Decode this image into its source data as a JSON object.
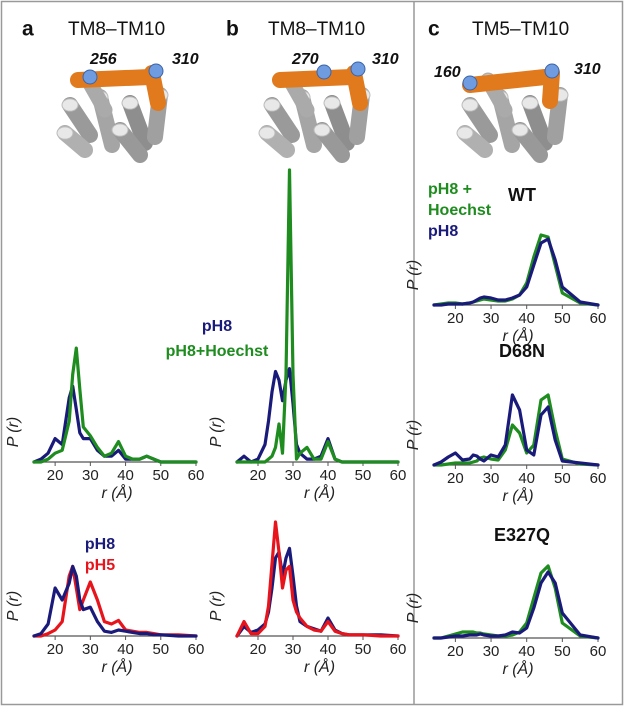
{
  "header": {
    "panels": [
      {
        "letter": "a",
        "title": "TM8–TM10",
        "residues": [
          "256",
          "310"
        ]
      },
      {
        "letter": "b",
        "title": "TM8–TM10",
        "residues": [
          "270",
          "310"
        ]
      },
      {
        "letter": "c",
        "title": "TM5–TM10",
        "residues": [
          "160",
          "310"
        ]
      }
    ]
  },
  "chart_data": [
    {
      "type": "line",
      "xlabel": "r (Å)",
      "ylabel": "P (r)",
      "x": [
        14,
        16,
        18,
        20,
        22,
        24,
        25,
        26,
        27,
        28,
        30,
        32,
        34,
        36,
        38,
        40,
        42,
        44,
        46,
        48,
        50,
        55,
        60
      ],
      "xlim": [
        14,
        60
      ],
      "xticks": [
        20,
        30,
        40,
        50,
        60
      ],
      "ylim": [
        0,
        100
      ],
      "series": [
        {
          "color": "#1a1a7a",
          "values": [
            0,
            1,
            3,
            8,
            6,
            22,
            26,
            18,
            10,
            8,
            8,
            4,
            2,
            2,
            4,
            1,
            1,
            1,
            2,
            1,
            0,
            0,
            0
          ]
        },
        {
          "color": "#1e8c1e",
          "values": [
            0,
            0,
            1,
            3,
            4,
            14,
            30,
            39,
            25,
            12,
            9,
            5,
            2,
            3,
            7,
            2,
            1,
            1,
            2,
            1,
            0,
            0,
            0
          ]
        }
      ]
    },
    {
      "type": "line",
      "xlabel": "r (Å)",
      "ylabel": "P (r)",
      "x": [
        14,
        16,
        18,
        20,
        22,
        24,
        25,
        26,
        27,
        28,
        30,
        32,
        34,
        36,
        38,
        40,
        42,
        44,
        46,
        48,
        50,
        55,
        60
      ],
      "xlim": [
        14,
        60
      ],
      "xticks": [
        20,
        30,
        40,
        50,
        60
      ],
      "ylim": [
        0,
        100
      ],
      "series": [
        {
          "color": "#e8141c",
          "values": [
            0,
            0,
            2,
            5,
            12,
            50,
            58,
            40,
            22,
            30,
            45,
            30,
            12,
            10,
            13,
            5,
            4,
            3,
            3,
            2,
            1,
            1,
            0
          ]
        },
        {
          "color": "#1a1a7a",
          "values": [
            0,
            2,
            10,
            40,
            30,
            44,
            58,
            50,
            30,
            22,
            24,
            12,
            4,
            3,
            5,
            4,
            3,
            2,
            2,
            1,
            1,
            0,
            0
          ]
        }
      ]
    },
    {
      "type": "line",
      "xlabel": "r (Å)",
      "ylabel": "P (r)",
      "legend": true,
      "x": [
        14,
        16,
        18,
        20,
        22,
        23,
        24,
        25,
        26,
        27,
        28,
        29,
        30,
        31,
        32,
        34,
        36,
        38,
        40,
        42,
        44,
        46,
        50,
        55,
        60
      ],
      "xlim": [
        14,
        60
      ],
      "xticks": [
        20,
        30,
        40,
        50,
        60
      ],
      "ylim": [
        0,
        100
      ],
      "series": [
        {
          "name": "pH8",
          "color": "#1a1a7a",
          "values": [
            0,
            2,
            0,
            1,
            6,
            14,
            24,
            31,
            28,
            21,
            28,
            32,
            20,
            6,
            3,
            1,
            1,
            2,
            8,
            1,
            0,
            0,
            0,
            0,
            0
          ]
        },
        {
          "name": "pH8+Hoechst",
          "color": "#1e8c1e",
          "values": [
            0,
            0,
            0,
            0,
            0,
            1,
            2,
            5,
            13,
            3,
            30,
            100,
            30,
            1,
            3,
            5,
            1,
            1,
            7,
            1,
            0,
            0,
            0,
            0,
            0
          ]
        }
      ]
    },
    {
      "type": "line",
      "xlabel": "r (Å)",
      "ylabel": "P (r)",
      "legend": true,
      "x": [
        14,
        16,
        18,
        20,
        22,
        23,
        24,
        25,
        26,
        27,
        28,
        29,
        30,
        31,
        32,
        34,
        36,
        38,
        40,
        42,
        44,
        46,
        50,
        55,
        60
      ],
      "xlim": [
        14,
        60
      ],
      "xticks": [
        20,
        30,
        40,
        50,
        60
      ],
      "ylim": [
        0,
        100
      ],
      "series": [
        {
          "name": "pH8",
          "color": "#1a1a7a",
          "values": [
            0,
            8,
            3,
            5,
            10,
            20,
            40,
            65,
            70,
            50,
            65,
            73,
            50,
            25,
            12,
            8,
            6,
            4,
            15,
            5,
            2,
            1,
            1,
            1,
            0
          ]
        },
        {
          "name": "pH5",
          "color": "#e8141c",
          "values": [
            0,
            12,
            2,
            2,
            8,
            25,
            60,
            95,
            70,
            40,
            55,
            58,
            30,
            20,
            15,
            8,
            5,
            4,
            12,
            4,
            2,
            1,
            1,
            0,
            0
          ]
        }
      ]
    },
    {
      "type": "line",
      "title": "WT",
      "xlabel": "r (Å)",
      "ylabel": "P (r)",
      "legend": true,
      "x": [
        14,
        16,
        18,
        20,
        22,
        24,
        25,
        26,
        27,
        28,
        30,
        32,
        34,
        36,
        38,
        40,
        42,
        44,
        46,
        48,
        50,
        55,
        60
      ],
      "xlim": [
        14,
        60
      ],
      "xticks": [
        20,
        30,
        40,
        50,
        60
      ],
      "ylim": [
        0,
        100
      ],
      "series": [
        {
          "name": "pH8 + Hoechst",
          "color": "#1e8c1e",
          "values": [
            0,
            1,
            2,
            2,
            1,
            2,
            3,
            4,
            5,
            6,
            5,
            4,
            4,
            6,
            10,
            22,
            48,
            70,
            68,
            40,
            12,
            2,
            0
          ]
        },
        {
          "name": "pH8",
          "color": "#1a1a7a",
          "values": [
            0,
            0,
            1,
            1,
            1,
            2,
            3,
            5,
            7,
            8,
            7,
            5,
            5,
            7,
            10,
            18,
            40,
            62,
            66,
            45,
            18,
            3,
            0
          ]
        }
      ]
    },
    {
      "type": "line",
      "title": "D68N",
      "xlabel": "r (Å)",
      "ylabel": "P (r)",
      "x": [
        14,
        16,
        18,
        20,
        22,
        24,
        25,
        26,
        27,
        28,
        30,
        32,
        34,
        36,
        38,
        40,
        42,
        44,
        46,
        48,
        50,
        55,
        60
      ],
      "xlim": [
        14,
        60
      ],
      "xticks": [
        20,
        30,
        40,
        50,
        60
      ],
      "ylim": [
        0,
        100
      ],
      "series": [
        {
          "color": "#1e8c1e",
          "values": [
            0,
            0,
            1,
            2,
            2,
            2,
            3,
            4,
            7,
            8,
            6,
            5,
            15,
            40,
            32,
            12,
            20,
            65,
            70,
            35,
            6,
            1,
            0
          ]
        },
        {
          "color": "#1a1a7a",
          "values": [
            0,
            3,
            8,
            12,
            5,
            6,
            10,
            9,
            6,
            4,
            10,
            8,
            20,
            70,
            55,
            15,
            10,
            50,
            58,
            25,
            4,
            2,
            0
          ]
        }
      ]
    },
    {
      "type": "line",
      "title": "E327Q",
      "xlabel": "r (Å)",
      "ylabel": "P (r)",
      "x": [
        14,
        16,
        18,
        20,
        22,
        24,
        25,
        26,
        27,
        28,
        30,
        32,
        34,
        36,
        38,
        40,
        42,
        44,
        46,
        48,
        50,
        55,
        60
      ],
      "xlim": [
        14,
        60
      ],
      "xticks": [
        20,
        30,
        40,
        50,
        60
      ],
      "ylim": [
        0,
        100
      ],
      "series": [
        {
          "color": "#1e8c1e",
          "values": [
            0,
            0,
            2,
            4,
            6,
            6,
            6,
            5,
            5,
            4,
            3,
            2,
            2,
            3,
            6,
            15,
            40,
            65,
            72,
            50,
            15,
            2,
            0
          ]
        },
        {
          "color": "#1a1a7a",
          "values": [
            0,
            0,
            1,
            2,
            2,
            3,
            3,
            3,
            4,
            3,
            2,
            2,
            3,
            6,
            5,
            10,
            30,
            55,
            66,
            55,
            25,
            3,
            0
          ]
        }
      ]
    }
  ]
}
